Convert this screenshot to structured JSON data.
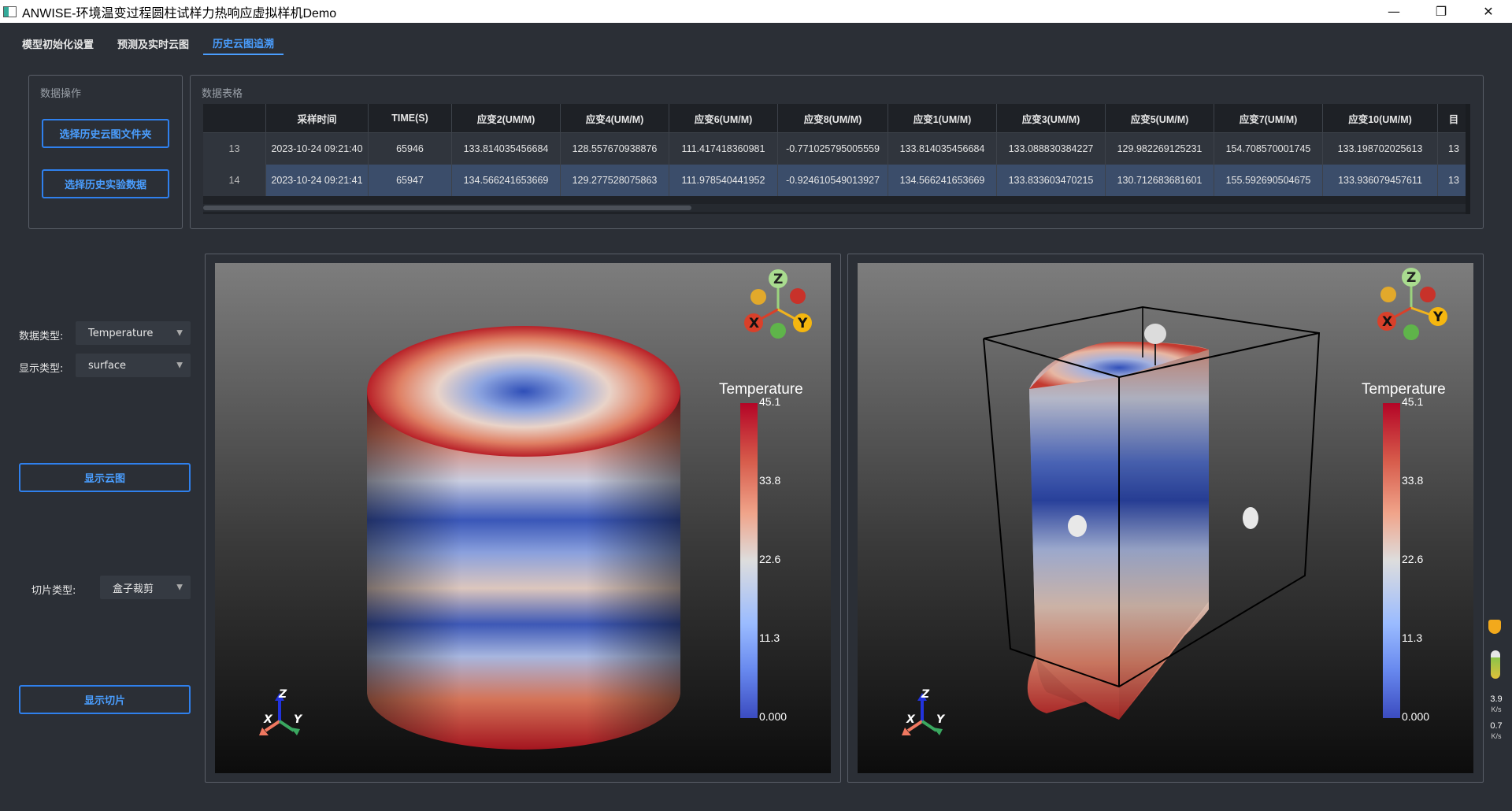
{
  "window": {
    "title": "ANWISE-环境温变过程圆柱试样力热响应虚拟样机Demo",
    "minimize": "—",
    "restore": "❐",
    "close": "✕"
  },
  "tabs": [
    {
      "label": "模型初始化设置"
    },
    {
      "label": "预测及实时云图"
    },
    {
      "label": "历史云图追溯"
    }
  ],
  "data_ops": {
    "title": "数据操作",
    "select_folder_btn": "选择历史云图文件夹",
    "select_data_btn": "选择历史实验数据"
  },
  "table": {
    "title": "数据表格",
    "headers": [
      "",
      "采样时间",
      "TIME(S)",
      "应变2(UM/M)",
      "应变4(UM/M)",
      "应变6(UM/M)",
      "应变8(UM/M)",
      "应变1(UM/M)",
      "应变3(UM/M)",
      "应变5(UM/M)",
      "应变7(UM/M)",
      "应变10(UM/M)",
      "目"
    ],
    "rows": [
      [
        "13",
        "2023-10-24 09:21:40",
        "65946",
        "133.814035456684",
        "128.557670938876",
        "111.417418360981",
        "-0.771025795005559",
        "133.814035456684",
        "133.088830384227",
        "129.982269125231",
        "154.708570001745",
        "133.198702025613",
        "13"
      ],
      [
        "14",
        "2023-10-24 09:21:41",
        "65947",
        "134.566241653669",
        "129.277528075863",
        "111.978540441952",
        "-0.924610549013927",
        "134.566241653669",
        "133.833603470215",
        "130.712683681601",
        "155.592690504675",
        "133.936079457611",
        "13"
      ]
    ]
  },
  "controls": {
    "data_type_label": "数据类型:",
    "data_type_value": "Temperature",
    "display_type_label": "显示类型:",
    "display_type_value": "surface",
    "show_cloud_btn": "显示云图",
    "slice_type_label": "切片类型:",
    "slice_type_value": "盒子裁剪",
    "show_slice_btn": "显示切片"
  },
  "views": {
    "colorbar_title": "Temperature",
    "colorbar_labels": [
      "45.1",
      "33.8",
      "22.6",
      "11.3",
      "0.000"
    ],
    "axis_x": "X",
    "axis_y": "Y",
    "axis_z": "Z"
  },
  "side_widget": {
    "up_value": "3.9",
    "up_unit": "K/s",
    "down_value": "0.7",
    "down_unit": "K/s"
  }
}
